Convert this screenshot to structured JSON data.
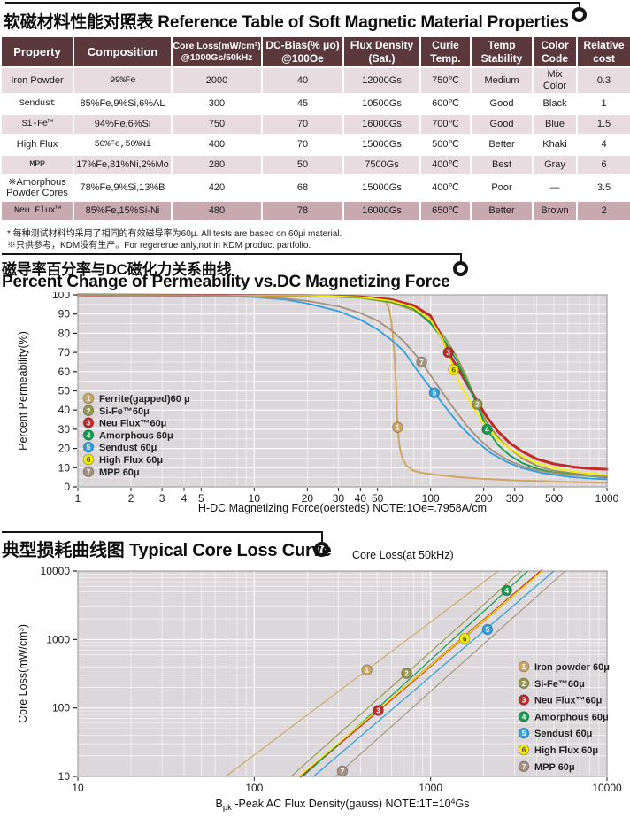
{
  "sections": {
    "table_section": {
      "title_zh": "软磁材料性能对照表",
      "title_en": "Reference Table of Soft Magnetic Material Properties"
    },
    "perm_section": {
      "title_zh": "磁导率百分率与DC磁化力关系曲线",
      "title_en": "Percent Change of Permeability vs.DC Magnetizing Force"
    },
    "loss_section": {
      "title_zh": "典型损耗曲线图",
      "title_en": "Typical Core Loss Curve",
      "subtitle": "Core Loss(at 50kHz)"
    }
  },
  "table": {
    "headers": [
      [
        "Property"
      ],
      [
        "Composition"
      ],
      [
        "Core Loss(mW/cm³)",
        "@1000Gs/50kHz"
      ],
      [
        "DC-Bias(% μo)",
        "@100Oe"
      ],
      [
        "Flux Density",
        "(Sat.)"
      ],
      [
        "Curie",
        "Temp."
      ],
      [
        "Temp",
        "Stability"
      ],
      [
        "Color",
        "Code"
      ],
      [
        "Relative",
        "cost"
      ]
    ],
    "rows": [
      {
        "property": "Iron Powder",
        "composition": "99%Fe",
        "core_loss": "2000",
        "dc_bias": "40",
        "flux": "12000Gs",
        "curie": "750℃",
        "stability": "Medium",
        "color_code": "Mix Color",
        "cost": "0.3",
        "shade": "pink",
        "comp_mono": true
      },
      {
        "property": "Sendust",
        "composition": "85%Fe,9%Si,6%AL",
        "core_loss": "300",
        "dc_bias": "45",
        "flux": "10500Gs",
        "curie": "600℃",
        "stability": "Good",
        "color_code": "Black",
        "cost": "1",
        "shade": "white",
        "prop_mono": true
      },
      {
        "property": "Si-Fe™",
        "composition": "94%Fe,6%Si",
        "core_loss": "750",
        "dc_bias": "70",
        "flux": "16000Gs",
        "curie": "700℃",
        "stability": "Good",
        "color_code": "Blue",
        "cost": "1.5",
        "shade": "pink",
        "prop_mono": true
      },
      {
        "property": "High Flux",
        "composition": "50%Fe,50%Ni",
        "core_loss": "400",
        "dc_bias": "70",
        "flux": "15000Gs",
        "curie": "500℃",
        "stability": "Better",
        "color_code": "Khaki",
        "cost": "4",
        "shade": "white",
        "comp_mono": true
      },
      {
        "property": "MPP",
        "composition": "17%Fe,81%Ni,2%Mo",
        "core_loss": "280",
        "dc_bias": "50",
        "flux": "7500Gs",
        "curie": "400℃",
        "stability": "Best",
        "color_code": "Gray",
        "cost": "6",
        "shade": "pink",
        "prop_mono": true
      },
      {
        "property": "※Amorphous Powder Cores",
        "composition": "78%Fe,9%Si,13%B",
        "core_loss": "420",
        "dc_bias": "68",
        "flux": "15000Gs",
        "curie": "400℃",
        "stability": "Poor",
        "color_code": "—",
        "cost": "3.5",
        "shade": "white"
      },
      {
        "property": "Neu Flux™",
        "composition": "85%Fe,15%Si-Ni",
        "core_loss": "480",
        "dc_bias": "78",
        "flux": "16000Gs",
        "curie": "650℃",
        "stability": "Better",
        "color_code": "Brown",
        "cost": "2",
        "shade": "dark",
        "prop_mono": true
      }
    ],
    "footnotes": [
      "* 每种测试材料均采用了相同的有效磁导率为60μ. All tests are based on 60μi material.",
      "※只供参考，KDM没有生产。For regererue anly,not in KDM product partfolio."
    ]
  },
  "chart_data": [
    {
      "type": "line",
      "title": "Percent Change of Permeability vs.DC Magnetizing Force",
      "xscale": "log",
      "yscale": "linear",
      "xlim": [
        1,
        1000
      ],
      "ylim": [
        0,
        100
      ],
      "xticks": [
        1,
        2,
        3,
        4,
        5,
        10,
        20,
        30,
        40,
        50,
        100,
        200,
        300,
        500,
        1000
      ],
      "yticks": [
        0,
        10,
        20,
        30,
        40,
        50,
        60,
        70,
        80,
        90,
        100
      ],
      "xlabel_parts": [
        {
          "t": "H-DC Magnetizing Force(oersteds)  NOTE:1Oe=.7958A/cm"
        }
      ],
      "ylabel": "Percent Permeability(%)",
      "grid": "on",
      "legend_position": "inside-left",
      "series": [
        {
          "num": 1,
          "name": "Ferrite(gapped)60 μ",
          "color": "#cda763",
          "text": "#fff",
          "width": 2,
          "marker": [
            65,
            31
          ],
          "points": [
            [
              1,
              100
            ],
            [
              20,
              99.7
            ],
            [
              30,
              99.4
            ],
            [
              40,
              99
            ],
            [
              48,
              98.4
            ],
            [
              53,
              97.6
            ],
            [
              56,
              96
            ],
            [
              58,
              93
            ],
            [
              60,
              86
            ],
            [
              62,
              72
            ],
            [
              63.5,
              55
            ],
            [
              65,
              31
            ],
            [
              66.5,
              22
            ],
            [
              69,
              15
            ],
            [
              73,
              11
            ],
            [
              80,
              8.5
            ],
            [
              90,
              7.3
            ],
            [
              110,
              6.2
            ],
            [
              150,
              5
            ],
            [
              200,
              4.2
            ],
            [
              300,
              3.4
            ],
            [
              500,
              2.8
            ],
            [
              700,
              2.4
            ],
            [
              1000,
              2.2
            ]
          ]
        },
        {
          "num": 2,
          "name": "Si-Fe™60μ",
          "color": "#97964a",
          "text": "#fff",
          "width": 1.8,
          "marker": [
            184,
            43
          ],
          "points": [
            [
              1,
              100
            ],
            [
              20,
              99.6
            ],
            [
              40,
              98.5
            ],
            [
              60,
              96
            ],
            [
              80,
              92
            ],
            [
              100,
              86
            ],
            [
              120,
              78
            ],
            [
              140,
              68
            ],
            [
              160,
              57
            ],
            [
              184,
              43
            ],
            [
              210,
              33
            ],
            [
              240,
              26
            ],
            [
              280,
              20
            ],
            [
              330,
              15
            ],
            [
              400,
              11
            ],
            [
              500,
              8.5
            ],
            [
              650,
              7
            ],
            [
              800,
              6
            ],
            [
              1000,
              5.5
            ]
          ]
        },
        {
          "num": 3,
          "name": "Neu Flux™60μ",
          "color": "#bf2a2b",
          "text": "#fff",
          "width": 3,
          "marker": [
            126,
            70
          ],
          "points": [
            [
              1,
              100
            ],
            [
              20,
              99.7
            ],
            [
              40,
              99
            ],
            [
              60,
              97.5
            ],
            [
              80,
              94.5
            ],
            [
              100,
              89
            ],
            [
              113,
              80
            ],
            [
              126,
              70
            ],
            [
              140,
              63
            ],
            [
              160,
              54
            ],
            [
              185,
              44
            ],
            [
              210,
              36
            ],
            [
              240,
              29
            ],
            [
              280,
              23
            ],
            [
              330,
              18.5
            ],
            [
              400,
              14.5
            ],
            [
              500,
              12
            ],
            [
              650,
              10.3
            ],
            [
              800,
              9.6
            ],
            [
              1000,
              9.2
            ]
          ]
        },
        {
          "num": 4,
          "name": "Amorphous 60μ",
          "color": "#129e4c",
          "text": "#fff",
          "width": 1.8,
          "marker": [
            209,
            30
          ],
          "points": [
            [
              1,
              100
            ],
            [
              20,
              99.6
            ],
            [
              40,
              98.6
            ],
            [
              60,
              96.5
            ],
            [
              80,
              93
            ],
            [
              100,
              85
            ],
            [
              120,
              76
            ],
            [
              140,
              66
            ],
            [
              160,
              55
            ],
            [
              185,
              42
            ],
            [
              209,
              30
            ],
            [
              240,
              22
            ],
            [
              280,
              16.5
            ],
            [
              330,
              12.5
            ],
            [
              400,
              9.5
            ],
            [
              500,
              7.5
            ],
            [
              700,
              6
            ],
            [
              1000,
              5
            ]
          ]
        },
        {
          "num": 5,
          "name": "Sendust 60μ",
          "color": "#2f9fe0",
          "text": "#fff",
          "width": 1.8,
          "marker": [
            105,
            49
          ],
          "points": [
            [
              1,
              100
            ],
            [
              5,
              99.6
            ],
            [
              10,
              98.8
            ],
            [
              15,
              97.5
            ],
            [
              20,
              95.5
            ],
            [
              30,
              91.5
            ],
            [
              40,
              87
            ],
            [
              50,
              82
            ],
            [
              60,
              76.5
            ],
            [
              70,
              71
            ],
            [
              85,
              60
            ],
            [
              105,
              49
            ],
            [
              125,
              40
            ],
            [
              150,
              31
            ],
            [
              180,
              24
            ],
            [
              220,
              17.5
            ],
            [
              270,
              13
            ],
            [
              330,
              9.8
            ],
            [
              430,
              7.2
            ],
            [
              600,
              5.3
            ],
            [
              800,
              4.4
            ],
            [
              1000,
              4
            ]
          ]
        },
        {
          "num": 6,
          "name": "High Flux 60μ",
          "color": "#f7ee00",
          "text": "#444",
          "width": 1.8,
          "marker": [
            135,
            61
          ],
          "points": [
            [
              1,
              100
            ],
            [
              20,
              99.7
            ],
            [
              40,
              98.8
            ],
            [
              60,
              96.8
            ],
            [
              80,
              93.5
            ],
            [
              100,
              87
            ],
            [
              115,
              78
            ],
            [
              125,
              70
            ],
            [
              135,
              61
            ],
            [
              150,
              52
            ],
            [
              170,
              43
            ],
            [
              200,
              33
            ],
            [
              240,
              25
            ],
            [
              280,
              20
            ],
            [
              330,
              16
            ],
            [
              400,
              12.5
            ],
            [
              500,
              10
            ],
            [
              650,
              8
            ],
            [
              800,
              7
            ],
            [
              1000,
              6.3
            ]
          ]
        },
        {
          "num": 7,
          "name": "MPP 60μ",
          "color": "#a5917f",
          "text": "#fff",
          "width": 1.8,
          "marker": [
            89,
            65
          ],
          "points": [
            [
              1,
              100
            ],
            [
              5,
              99.6
            ],
            [
              10,
              99
            ],
            [
              15,
              98
            ],
            [
              20,
              96.8
            ],
            [
              30,
              94
            ],
            [
              40,
              90.5
            ],
            [
              50,
              86.5
            ],
            [
              60,
              81.5
            ],
            [
              70,
              76
            ],
            [
              80,
              70
            ],
            [
              89,
              65
            ],
            [
              100,
              58
            ],
            [
              115,
              50
            ],
            [
              135,
              41
            ],
            [
              160,
              32
            ],
            [
              190,
              24.5
            ],
            [
              230,
              18
            ],
            [
              280,
              13.5
            ],
            [
              350,
              10
            ],
            [
              450,
              7.8
            ],
            [
              600,
              6.3
            ],
            [
              800,
              5.7
            ],
            [
              1000,
              5.3
            ]
          ]
        }
      ]
    },
    {
      "type": "line",
      "title": "Typical Core Loss Curve",
      "subtitle": "Core Loss(at 50kHz)",
      "xscale": "log",
      "yscale": "log",
      "xlim": [
        10,
        10000
      ],
      "ylim": [
        10,
        10000
      ],
      "xticks": [
        10,
        100,
        1000,
        10000
      ],
      "yticks": [
        10,
        100,
        1000,
        10000
      ],
      "xlabel_parts": [
        {
          "t": "B"
        },
        {
          "t": "pk",
          "sub": true
        },
        {
          "t": " -Peak AC Flux Density(gauss)  NOTE:1T=10"
        },
        {
          "t": "4",
          "sup": true
        },
        {
          "t": "Gs"
        }
      ],
      "ylabel": "Core Loss(mW/cm³)",
      "grid": "on",
      "legend_position": "inside-right",
      "series": [
        {
          "num": 1,
          "name": "Iron powder 60μ",
          "color": "#cda763",
          "text": "#fff",
          "width": 1.1,
          "marker": [
            435,
            360
          ],
          "points": [
            [
              69,
              10
            ],
            [
              2420,
              10000
            ]
          ]
        },
        {
          "num": 2,
          "name": "Si-Fe™60μ",
          "color": "#97964a",
          "text": "#fff",
          "width": 1.1,
          "marker": [
            730,
            320
          ],
          "points": [
            [
              162,
              10
            ],
            [
              3260,
              10000
            ]
          ]
        },
        {
          "num": 3,
          "name": "Neu Flux™60μ",
          "color": "#bf2a2b",
          "text": "#fff",
          "width": 2.6,
          "marker": [
            505,
            92
          ],
          "points": [
            [
              184,
              10
            ],
            [
              4250,
              10000
            ]
          ]
        },
        {
          "num": 4,
          "name": "Amorphous 60μ",
          "color": "#129e4c",
          "text": "#fff",
          "width": 1.2,
          "marker": [
            2700,
            5200
          ],
          "points": [
            [
              189,
              10
            ],
            [
              3560,
              10000
            ]
          ]
        },
        {
          "num": 5,
          "name": "Sendust 60μ",
          "color": "#2f9fe0",
          "text": "#fff",
          "width": 1.2,
          "marker": [
            2100,
            1400
          ],
          "points": [
            [
              217,
              10
            ],
            [
              5000,
              10000
            ]
          ]
        },
        {
          "num": 6,
          "name": "High Flux 60μ",
          "color": "#f7ee00",
          "text": "#444",
          "width": 1.4,
          "marker": [
            1560,
            1030
          ],
          "points": [
            [
              180,
              10
            ],
            [
              4300,
              10000
            ]
          ]
        },
        {
          "num": 7,
          "name": "MPP 60μ",
          "color": "#a5917f",
          "text": "#fff",
          "width": 1.1,
          "marker": [
            316,
            12
          ],
          "points": [
            [
              289,
              10
            ],
            [
              5800,
              10000
            ]
          ]
        }
      ]
    }
  ]
}
